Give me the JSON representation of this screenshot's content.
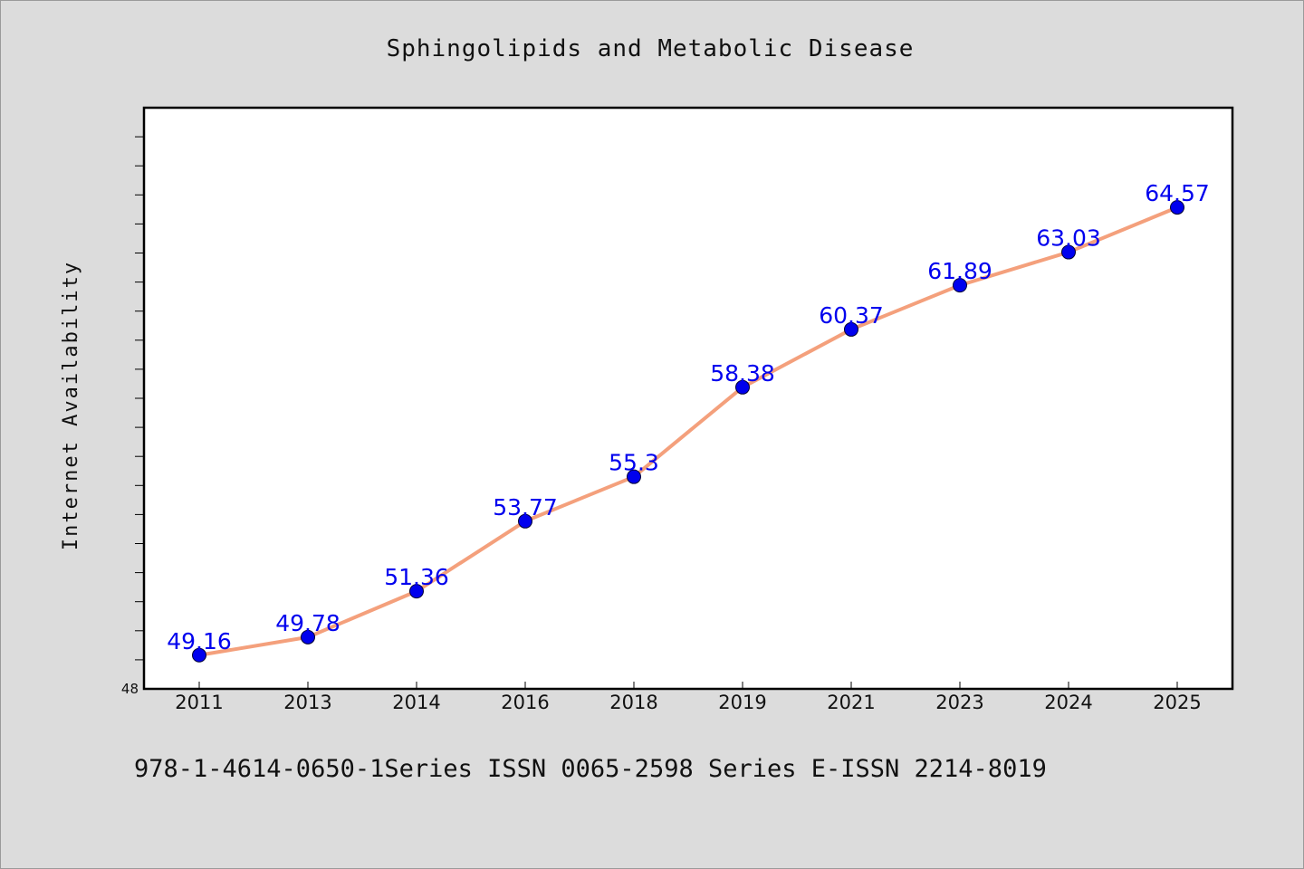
{
  "chart_data": {
    "type": "line",
    "title": "Sphingolipids and Metabolic Disease",
    "ylabel": "Internet Availability",
    "xlabel": "",
    "categories": [
      "2011",
      "2013",
      "2014",
      "2016",
      "2018",
      "2019",
      "2021",
      "2023",
      "2024",
      "2025"
    ],
    "series": [
      {
        "values": [
          49.16,
          49.78,
          51.36,
          53.77,
          55.3,
          58.38,
          60.37,
          61.89,
          63.03,
          64.57
        ],
        "labels": [
          "49.16",
          "49.78",
          "51.36",
          "53.77",
          "55.3",
          "58.38",
          "60.37",
          "61.89",
          "63.03",
          "64.57"
        ],
        "line_color": "#f4a07c",
        "marker_color": "#0000ee"
      }
    ],
    "ylim": [
      48,
      68
    ],
    "ytick_labels": [
      "48"
    ],
    "grid": false,
    "legend": "none"
  },
  "footer": {
    "text": "978-1-4614-0650-1Series ISSN 0065-2598 Series E-ISSN 2214-8019"
  },
  "colors": {
    "background": "#dcdcdc",
    "plot_background": "#ffffff",
    "axis": "#000000"
  }
}
